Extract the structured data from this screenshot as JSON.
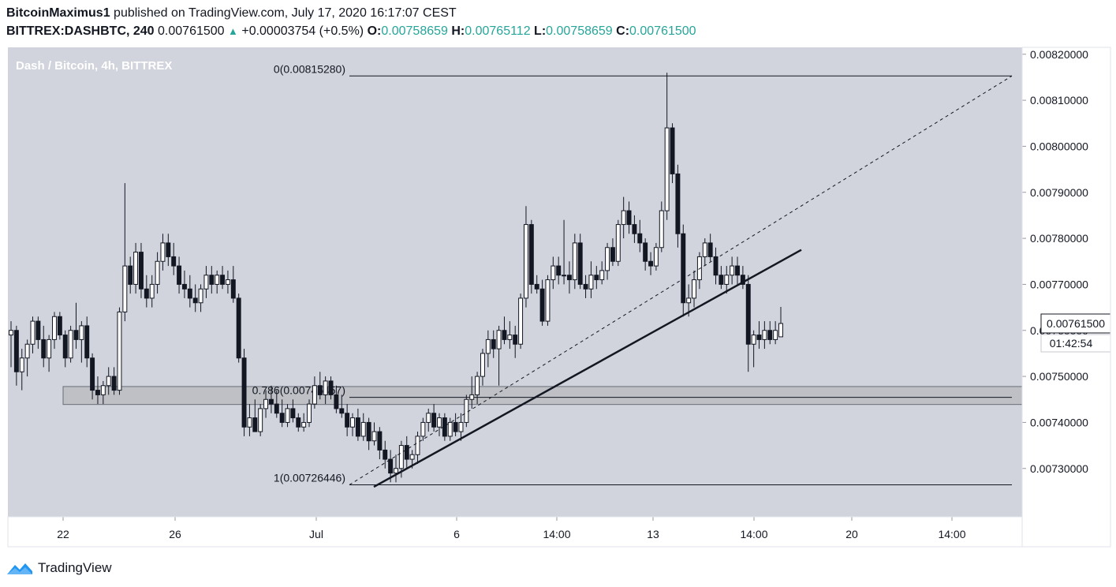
{
  "header": {
    "author": "BitcoinMaximus1",
    "published_text": "published on TradingView.com, July 17, 2020 16:17:07 CEST",
    "symbol": "BITTREX:DASHBTC, 240",
    "last_price": "0.00761500",
    "change_icon": "triangle-up-icon",
    "change": "+0.00003754 (+0.5%)",
    "o_label": "O:",
    "o_value": "0.00758659",
    "h_label": "H:",
    "h_value": "0.00765112",
    "l_label": "L:",
    "l_value": "0.00758659",
    "c_label": "C:",
    "c_value": "0.00761500"
  },
  "chart_data": {
    "type": "candlestick",
    "title": "Dash / Bitcoin, 4h, BITTREX",
    "ylim": [
      0.007195,
      0.008215
    ],
    "y_ticks": [
      0.0082,
      0.0081,
      0.008,
      0.0079,
      0.0078,
      0.0077,
      0.0076,
      0.0075,
      0.0074,
      0.0073
    ],
    "y_tick_labels": [
      "0.00820000",
      "0.00810000",
      "0.00800000",
      "0.00790000",
      "0.00780000",
      "0.00770000",
      "0.00760000",
      "0.00750000",
      "0.00740000",
      "0.00730000"
    ],
    "x_tick_labels": [
      "22",
      "26",
      "Jul",
      "6",
      "14:00",
      "13",
      "14:00",
      "20",
      "14:00"
    ],
    "last_price_label": "0.00761500",
    "countdown_label": "01:42:54",
    "grid": false,
    "colors": {
      "background": "#d1d4dc",
      "up_body": "#ffffff",
      "down_body": "#131722",
      "wick": "#131722",
      "text": "#ffffff",
      "axis_text": "#131722"
    },
    "fib_levels": [
      {
        "label": "0(0.00815280)",
        "value": 0.0081528
      },
      {
        "label": "0.786(0.00745457)",
        "value": 0.00745457
      },
      {
        "label": "1(0.00726446)",
        "value": 0.00726446
      }
    ],
    "support_zone": [
      0.007439,
      0.007478
    ],
    "trendline": [
      {
        "value": 0.00726
      },
      {
        "value": 0.007775
      }
    ],
    "fib_trend": [
      {
        "value": 0.00726446
      },
      {
        "value": 0.0081528
      }
    ],
    "candles": [
      {
        "o": 0.00759,
        "h": 0.00762,
        "l": 0.00752,
        "c": 0.0076
      },
      {
        "o": 0.0076,
        "h": 0.00761,
        "l": 0.00748,
        "c": 0.00751
      },
      {
        "o": 0.00751,
        "h": 0.00756,
        "l": 0.00747,
        "c": 0.00754
      },
      {
        "o": 0.00754,
        "h": 0.00758,
        "l": 0.0075,
        "c": 0.00757
      },
      {
        "o": 0.00757,
        "h": 0.00763,
        "l": 0.00755,
        "c": 0.00762
      },
      {
        "o": 0.00762,
        "h": 0.00763,
        "l": 0.00756,
        "c": 0.00758
      },
      {
        "o": 0.00758,
        "h": 0.00761,
        "l": 0.00752,
        "c": 0.00754
      },
      {
        "o": 0.00754,
        "h": 0.00759,
        "l": 0.00751,
        "c": 0.00758
      },
      {
        "o": 0.00758,
        "h": 0.00764,
        "l": 0.00756,
        "c": 0.00763
      },
      {
        "o": 0.00763,
        "h": 0.00764,
        "l": 0.00758,
        "c": 0.00759
      },
      {
        "o": 0.00759,
        "h": 0.0076,
        "l": 0.00752,
        "c": 0.00754
      },
      {
        "o": 0.00754,
        "h": 0.00761,
        "l": 0.00753,
        "c": 0.0076
      },
      {
        "o": 0.0076,
        "h": 0.00766,
        "l": 0.00756,
        "c": 0.00758
      },
      {
        "o": 0.00758,
        "h": 0.00762,
        "l": 0.00753,
        "c": 0.00761
      },
      {
        "o": 0.00761,
        "h": 0.00763,
        "l": 0.00752,
        "c": 0.00754
      },
      {
        "o": 0.00754,
        "h": 0.00755,
        "l": 0.00745,
        "c": 0.00747
      },
      {
        "o": 0.00747,
        "h": 0.0075,
        "l": 0.00744,
        "c": 0.00746
      },
      {
        "o": 0.00746,
        "h": 0.00749,
        "l": 0.00744,
        "c": 0.00748
      },
      {
        "o": 0.00748,
        "h": 0.00752,
        "l": 0.00746,
        "c": 0.0075
      },
      {
        "o": 0.0075,
        "h": 0.00752,
        "l": 0.00746,
        "c": 0.00747
      },
      {
        "o": 0.00747,
        "h": 0.00765,
        "l": 0.00746,
        "c": 0.00764
      },
      {
        "o": 0.00764,
        "h": 0.00792,
        "l": 0.00762,
        "c": 0.00774
      },
      {
        "o": 0.00774,
        "h": 0.00776,
        "l": 0.00768,
        "c": 0.0077
      },
      {
        "o": 0.0077,
        "h": 0.00779,
        "l": 0.00768,
        "c": 0.00777
      },
      {
        "o": 0.00777,
        "h": 0.00779,
        "l": 0.00767,
        "c": 0.00769
      },
      {
        "o": 0.00769,
        "h": 0.00772,
        "l": 0.00765,
        "c": 0.00767
      },
      {
        "o": 0.00767,
        "h": 0.00772,
        "l": 0.00765,
        "c": 0.0077
      },
      {
        "o": 0.0077,
        "h": 0.00777,
        "l": 0.00768,
        "c": 0.00775
      },
      {
        "o": 0.00775,
        "h": 0.00781,
        "l": 0.00773,
        "c": 0.00779
      },
      {
        "o": 0.00779,
        "h": 0.00781,
        "l": 0.00774,
        "c": 0.00776
      },
      {
        "o": 0.00776,
        "h": 0.00779,
        "l": 0.00772,
        "c": 0.00774
      },
      {
        "o": 0.00774,
        "h": 0.00776,
        "l": 0.00768,
        "c": 0.0077
      },
      {
        "o": 0.0077,
        "h": 0.00773,
        "l": 0.00767,
        "c": 0.00769
      },
      {
        "o": 0.00769,
        "h": 0.00772,
        "l": 0.00765,
        "c": 0.00767
      },
      {
        "o": 0.00767,
        "h": 0.0077,
        "l": 0.00764,
        "c": 0.00766
      },
      {
        "o": 0.00766,
        "h": 0.0077,
        "l": 0.00764,
        "c": 0.00769
      },
      {
        "o": 0.00769,
        "h": 0.00774,
        "l": 0.00767,
        "c": 0.00772
      },
      {
        "o": 0.00772,
        "h": 0.00774,
        "l": 0.00768,
        "c": 0.0077
      },
      {
        "o": 0.0077,
        "h": 0.00773,
        "l": 0.00768,
        "c": 0.00772
      },
      {
        "o": 0.00772,
        "h": 0.00774,
        "l": 0.00769,
        "c": 0.0077
      },
      {
        "o": 0.0077,
        "h": 0.00773,
        "l": 0.00768,
        "c": 0.00771
      },
      {
        "o": 0.00771,
        "h": 0.00774,
        "l": 0.00766,
        "c": 0.00767
      },
      {
        "o": 0.00767,
        "h": 0.00768,
        "l": 0.00753,
        "c": 0.00754
      },
      {
        "o": 0.00754,
        "h": 0.00756,
        "l": 0.00737,
        "c": 0.00739
      },
      {
        "o": 0.00739,
        "h": 0.00744,
        "l": 0.00737,
        "c": 0.00741
      },
      {
        "o": 0.00741,
        "h": 0.00745,
        "l": 0.00738,
        "c": 0.00738
      },
      {
        "o": 0.00738,
        "h": 0.00744,
        "l": 0.00737,
        "c": 0.00743
      },
      {
        "o": 0.00743,
        "h": 0.00747,
        "l": 0.00741,
        "c": 0.00745
      },
      {
        "o": 0.00745,
        "h": 0.00748,
        "l": 0.00742,
        "c": 0.00744
      },
      {
        "o": 0.00744,
        "h": 0.00747,
        "l": 0.00741,
        "c": 0.00742
      },
      {
        "o": 0.00742,
        "h": 0.00745,
        "l": 0.00739,
        "c": 0.0074
      },
      {
        "o": 0.0074,
        "h": 0.00744,
        "l": 0.00739,
        "c": 0.00743
      },
      {
        "o": 0.00743,
        "h": 0.00745,
        "l": 0.0074,
        "c": 0.00741
      },
      {
        "o": 0.00741,
        "h": 0.00742,
        "l": 0.00738,
        "c": 0.00739
      },
      {
        "o": 0.00739,
        "h": 0.00742,
        "l": 0.00738,
        "c": 0.0074
      },
      {
        "o": 0.0074,
        "h": 0.00745,
        "l": 0.00739,
        "c": 0.00744
      },
      {
        "o": 0.00744,
        "h": 0.0075,
        "l": 0.00743,
        "c": 0.00748
      },
      {
        "o": 0.00748,
        "h": 0.00751,
        "l": 0.00745,
        "c": 0.00746
      },
      {
        "o": 0.00746,
        "h": 0.0075,
        "l": 0.00744,
        "c": 0.00749
      },
      {
        "o": 0.00749,
        "h": 0.0075,
        "l": 0.00745,
        "c": 0.00746
      },
      {
        "o": 0.00746,
        "h": 0.00748,
        "l": 0.00742,
        "c": 0.00743
      },
      {
        "o": 0.00743,
        "h": 0.00746,
        "l": 0.00741,
        "c": 0.00742
      },
      {
        "o": 0.00742,
        "h": 0.00744,
        "l": 0.00737,
        "c": 0.00739
      },
      {
        "o": 0.00739,
        "h": 0.00742,
        "l": 0.00737,
        "c": 0.00741
      },
      {
        "o": 0.00741,
        "h": 0.00743,
        "l": 0.00736,
        "c": 0.00737
      },
      {
        "o": 0.00737,
        "h": 0.00742,
        "l": 0.00736,
        "c": 0.0074
      },
      {
        "o": 0.0074,
        "h": 0.00741,
        "l": 0.00734,
        "c": 0.00736
      },
      {
        "o": 0.00736,
        "h": 0.0074,
        "l": 0.00735,
        "c": 0.00738
      },
      {
        "o": 0.00738,
        "h": 0.00739,
        "l": 0.00732,
        "c": 0.00734
      },
      {
        "o": 0.00734,
        "h": 0.00736,
        "l": 0.0073,
        "c": 0.00732
      },
      {
        "o": 0.00732,
        "h": 0.00734,
        "l": 0.00727,
        "c": 0.00729
      },
      {
        "o": 0.00729,
        "h": 0.00733,
        "l": 0.00727,
        "c": 0.0073
      },
      {
        "o": 0.0073,
        "h": 0.00736,
        "l": 0.00728,
        "c": 0.00735
      },
      {
        "o": 0.00735,
        "h": 0.00737,
        "l": 0.0073,
        "c": 0.00732
      },
      {
        "o": 0.00732,
        "h": 0.00734,
        "l": 0.0073,
        "c": 0.00733
      },
      {
        "o": 0.00733,
        "h": 0.00738,
        "l": 0.00731,
        "c": 0.00737
      },
      {
        "o": 0.00737,
        "h": 0.00741,
        "l": 0.00736,
        "c": 0.0074
      },
      {
        "o": 0.0074,
        "h": 0.00743,
        "l": 0.00738,
        "c": 0.00742
      },
      {
        "o": 0.00742,
        "h": 0.00744,
        "l": 0.00738,
        "c": 0.00739
      },
      {
        "o": 0.00739,
        "h": 0.00742,
        "l": 0.00737,
        "c": 0.00741
      },
      {
        "o": 0.00741,
        "h": 0.00742,
        "l": 0.00736,
        "c": 0.00737
      },
      {
        "o": 0.00737,
        "h": 0.00741,
        "l": 0.00736,
        "c": 0.0074
      },
      {
        "o": 0.0074,
        "h": 0.00742,
        "l": 0.00737,
        "c": 0.00738
      },
      {
        "o": 0.00738,
        "h": 0.00742,
        "l": 0.00736,
        "c": 0.0074
      },
      {
        "o": 0.0074,
        "h": 0.00746,
        "l": 0.00739,
        "c": 0.00745
      },
      {
        "o": 0.00745,
        "h": 0.0075,
        "l": 0.00743,
        "c": 0.00746
      },
      {
        "o": 0.00746,
        "h": 0.00751,
        "l": 0.00744,
        "c": 0.0075
      },
      {
        "o": 0.0075,
        "h": 0.00756,
        "l": 0.00748,
        "c": 0.00755
      },
      {
        "o": 0.00755,
        "h": 0.0076,
        "l": 0.00752,
        "c": 0.00758
      },
      {
        "o": 0.00758,
        "h": 0.0076,
        "l": 0.00754,
        "c": 0.00756
      },
      {
        "o": 0.00756,
        "h": 0.00761,
        "l": 0.00748,
        "c": 0.0076
      },
      {
        "o": 0.0076,
        "h": 0.00763,
        "l": 0.00757,
        "c": 0.00758
      },
      {
        "o": 0.00758,
        "h": 0.00762,
        "l": 0.00756,
        "c": 0.00759
      },
      {
        "o": 0.00759,
        "h": 0.00761,
        "l": 0.00754,
        "c": 0.00757
      },
      {
        "o": 0.00757,
        "h": 0.00768,
        "l": 0.00756,
        "c": 0.00767
      },
      {
        "o": 0.00767,
        "h": 0.00787,
        "l": 0.00765,
        "c": 0.00783
      },
      {
        "o": 0.00783,
        "h": 0.00784,
        "l": 0.00768,
        "c": 0.0077
      },
      {
        "o": 0.0077,
        "h": 0.00772,
        "l": 0.00768,
        "c": 0.00769
      },
      {
        "o": 0.00769,
        "h": 0.00771,
        "l": 0.00761,
        "c": 0.00762
      },
      {
        "o": 0.00762,
        "h": 0.00772,
        "l": 0.00761,
        "c": 0.00771
      },
      {
        "o": 0.00771,
        "h": 0.00776,
        "l": 0.00769,
        "c": 0.00774
      },
      {
        "o": 0.00774,
        "h": 0.00776,
        "l": 0.0077,
        "c": 0.00772
      },
      {
        "o": 0.00772,
        "h": 0.00784,
        "l": 0.0077,
        "c": 0.00772
      },
      {
        "o": 0.00772,
        "h": 0.00775,
        "l": 0.00768,
        "c": 0.00771
      },
      {
        "o": 0.00771,
        "h": 0.00781,
        "l": 0.00769,
        "c": 0.00779
      },
      {
        "o": 0.00779,
        "h": 0.00781,
        "l": 0.00769,
        "c": 0.0077
      },
      {
        "o": 0.0077,
        "h": 0.00772,
        "l": 0.00767,
        "c": 0.00769
      },
      {
        "o": 0.00769,
        "h": 0.00775,
        "l": 0.00767,
        "c": 0.00772
      },
      {
        "o": 0.00772,
        "h": 0.00774,
        "l": 0.00769,
        "c": 0.00771
      },
      {
        "o": 0.00771,
        "h": 0.00775,
        "l": 0.0077,
        "c": 0.00773
      },
      {
        "o": 0.00773,
        "h": 0.00779,
        "l": 0.00771,
        "c": 0.00778
      },
      {
        "o": 0.00778,
        "h": 0.0078,
        "l": 0.00774,
        "c": 0.00775
      },
      {
        "o": 0.00775,
        "h": 0.00784,
        "l": 0.00774,
        "c": 0.00783
      },
      {
        "o": 0.00783,
        "h": 0.00789,
        "l": 0.0078,
        "c": 0.00786
      },
      {
        "o": 0.00786,
        "h": 0.00788,
        "l": 0.00781,
        "c": 0.00783
      },
      {
        "o": 0.00783,
        "h": 0.00785,
        "l": 0.00779,
        "c": 0.00781
      },
      {
        "o": 0.00781,
        "h": 0.00784,
        "l": 0.00777,
        "c": 0.00779
      },
      {
        "o": 0.00779,
        "h": 0.0078,
        "l": 0.00773,
        "c": 0.00775
      },
      {
        "o": 0.00775,
        "h": 0.00777,
        "l": 0.00772,
        "c": 0.00774
      },
      {
        "o": 0.00774,
        "h": 0.00779,
        "l": 0.00773,
        "c": 0.00778
      },
      {
        "o": 0.00778,
        "h": 0.00788,
        "l": 0.00777,
        "c": 0.00786
      },
      {
        "o": 0.00786,
        "h": 0.00816,
        "l": 0.00784,
        "c": 0.00804
      },
      {
        "o": 0.00804,
        "h": 0.00805,
        "l": 0.00792,
        "c": 0.00794
      },
      {
        "o": 0.00794,
        "h": 0.00796,
        "l": 0.00778,
        "c": 0.00781
      },
      {
        "o": 0.00781,
        "h": 0.00783,
        "l": 0.00763,
        "c": 0.00766
      },
      {
        "o": 0.00766,
        "h": 0.0077,
        "l": 0.00763,
        "c": 0.00767
      },
      {
        "o": 0.00767,
        "h": 0.00773,
        "l": 0.00765,
        "c": 0.00771
      },
      {
        "o": 0.00771,
        "h": 0.00777,
        "l": 0.00769,
        "c": 0.00776
      },
      {
        "o": 0.00776,
        "h": 0.0078,
        "l": 0.00774,
        "c": 0.00779
      },
      {
        "o": 0.00779,
        "h": 0.00781,
        "l": 0.00775,
        "c": 0.00776
      },
      {
        "o": 0.00776,
        "h": 0.00778,
        "l": 0.0077,
        "c": 0.00772
      },
      {
        "o": 0.00772,
        "h": 0.00774,
        "l": 0.00769,
        "c": 0.0077
      },
      {
        "o": 0.0077,
        "h": 0.00774,
        "l": 0.00768,
        "c": 0.00772
      },
      {
        "o": 0.00772,
        "h": 0.00776,
        "l": 0.0077,
        "c": 0.00774
      },
      {
        "o": 0.00774,
        "h": 0.00776,
        "l": 0.0077,
        "c": 0.00772
      },
      {
        "o": 0.00772,
        "h": 0.00774,
        "l": 0.00769,
        "c": 0.0077
      },
      {
        "o": 0.0077,
        "h": 0.00772,
        "l": 0.00751,
        "c": 0.00757
      },
      {
        "o": 0.00757,
        "h": 0.0076,
        "l": 0.00752,
        "c": 0.00759
      },
      {
        "o": 0.00759,
        "h": 0.00762,
        "l": 0.00756,
        "c": 0.00758
      },
      {
        "o": 0.00758,
        "h": 0.00762,
        "l": 0.00756,
        "c": 0.0076
      },
      {
        "o": 0.0076,
        "h": 0.00762,
        "l": 0.00757,
        "c": 0.00758
      },
      {
        "o": 0.00758,
        "h": 0.00762,
        "l": 0.00757,
        "c": 0.0076
      },
      {
        "o": 0.007586,
        "h": 0.007651,
        "l": 0.007586,
        "c": 0.007615
      }
    ]
  }
}
